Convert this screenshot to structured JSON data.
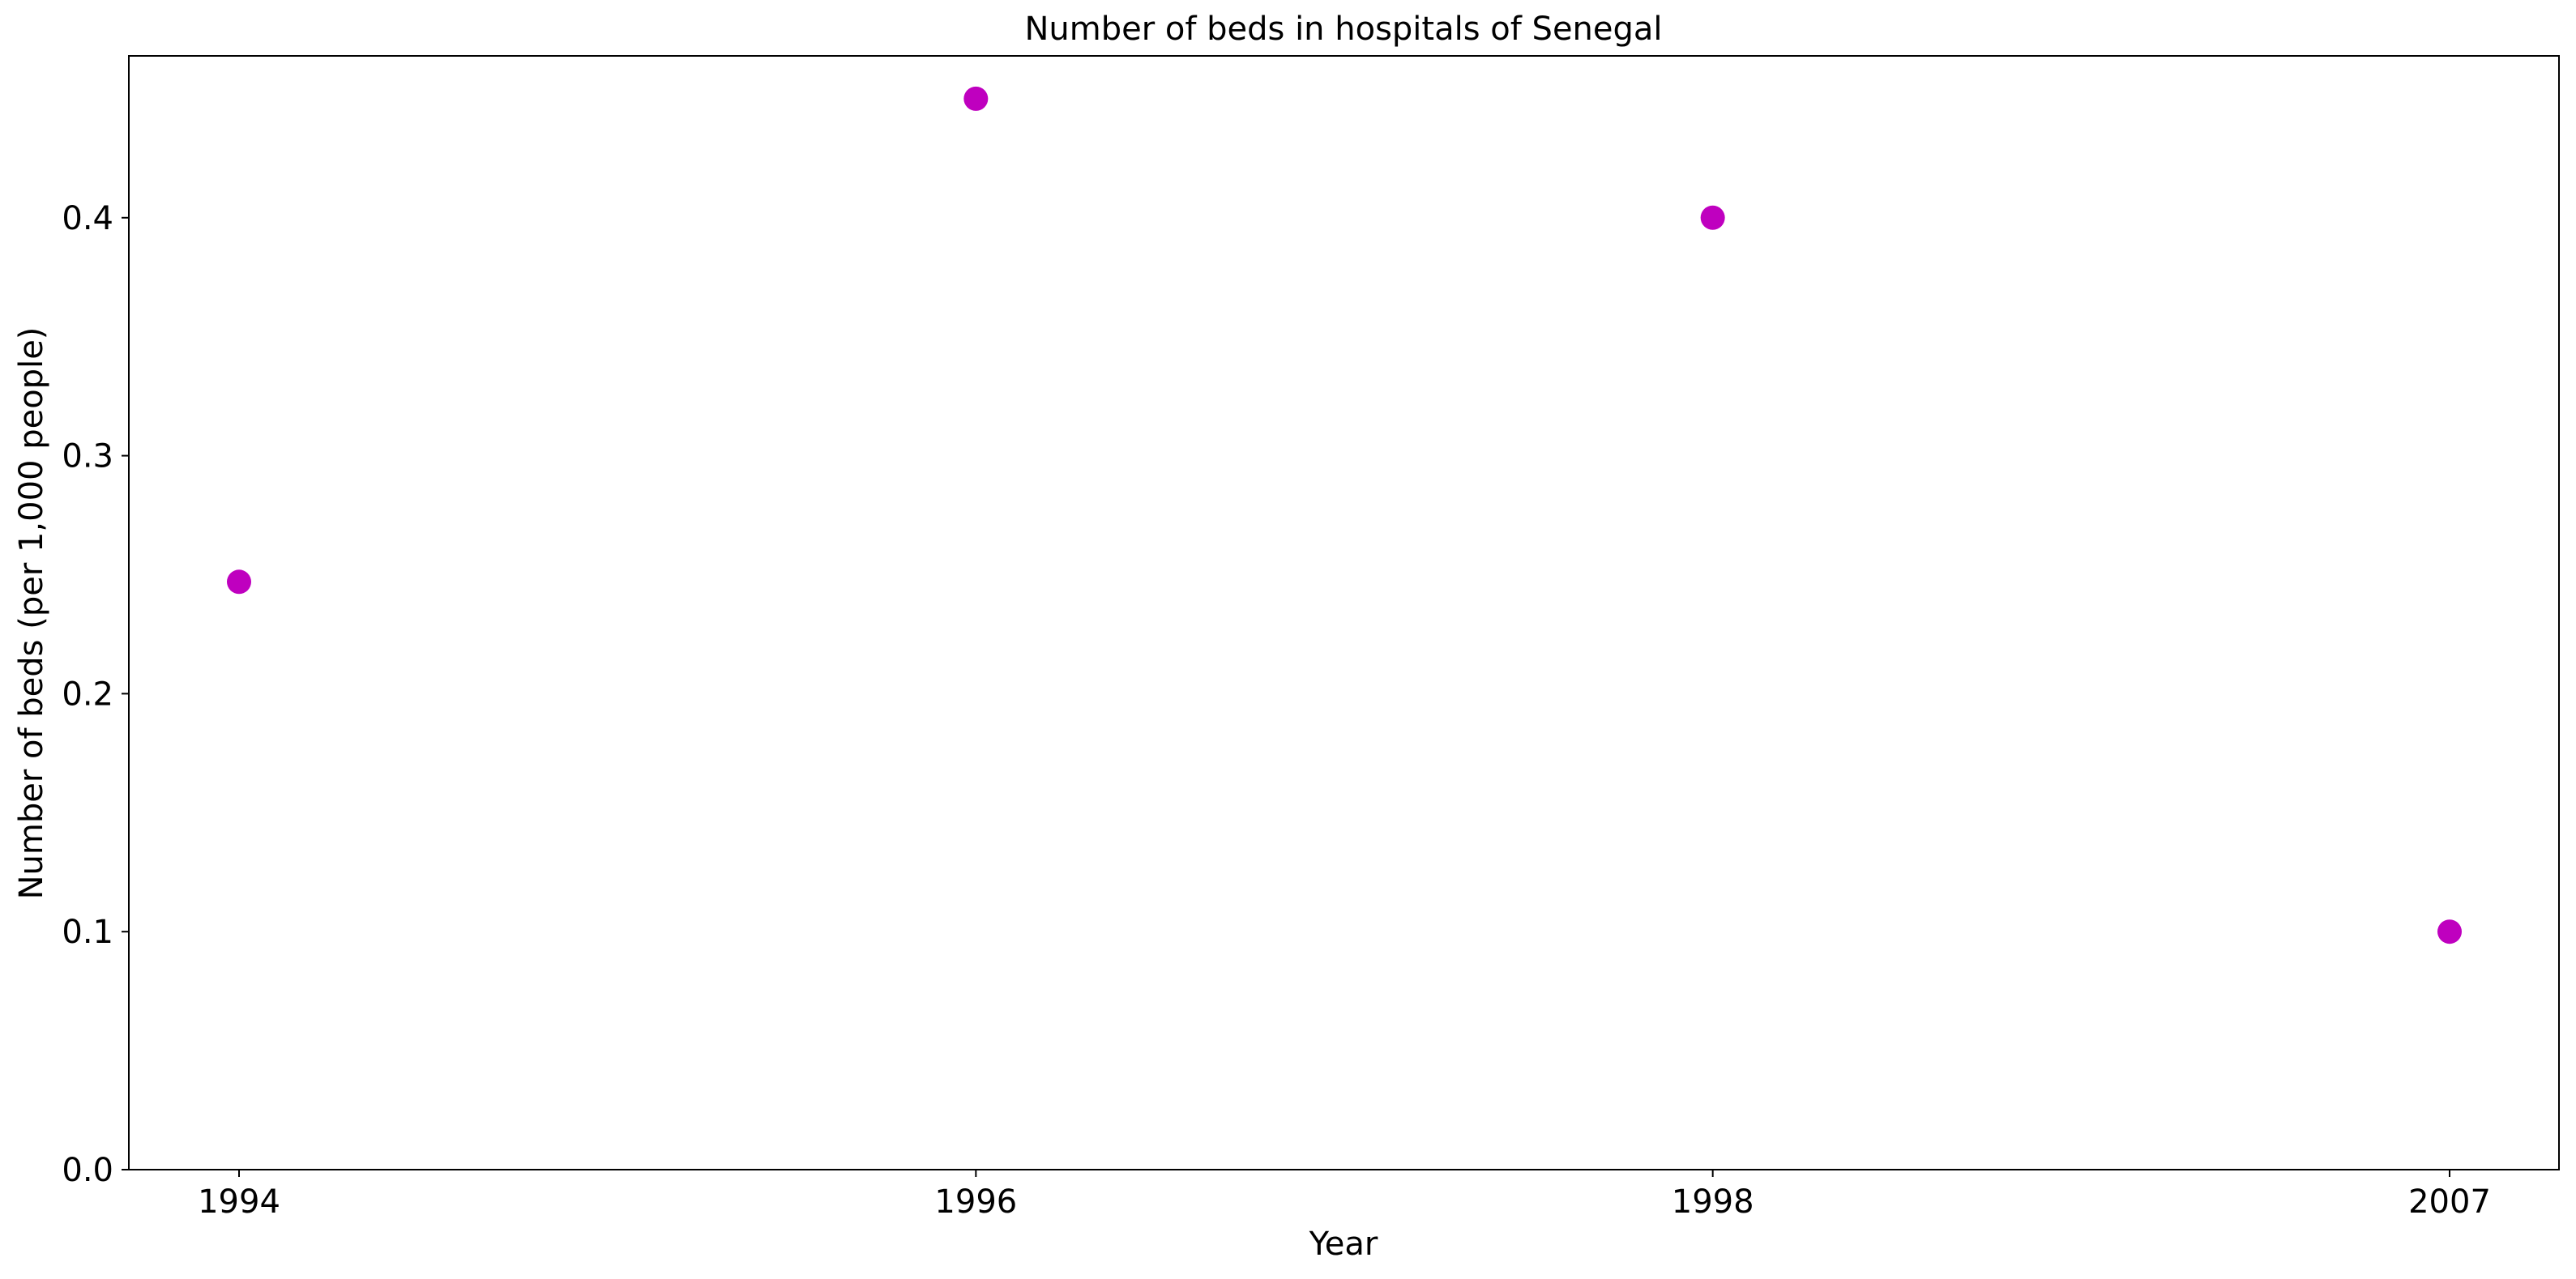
{
  "chart_data": {
    "type": "scatter",
    "title": "Number of beds in hospitals of Senegal",
    "xlabel": "Year",
    "ylabel": "Number of beds (per 1,000 people)",
    "categories": [
      "1994",
      "1996",
      "1998",
      "2007"
    ],
    "series": [
      {
        "values": [
          0.247,
          0.45,
          0.4,
          0.1
        ],
        "color": "#bf00bf"
      }
    ],
    "ylim": [
      0,
      0.468
    ],
    "yticks": [
      0.0,
      0.1,
      0.2,
      0.3,
      0.4
    ],
    "ytick_labels": [
      "0.0",
      "0.1",
      "0.2",
      "0.3",
      "0.4"
    ],
    "grid": false,
    "legend": "none"
  }
}
